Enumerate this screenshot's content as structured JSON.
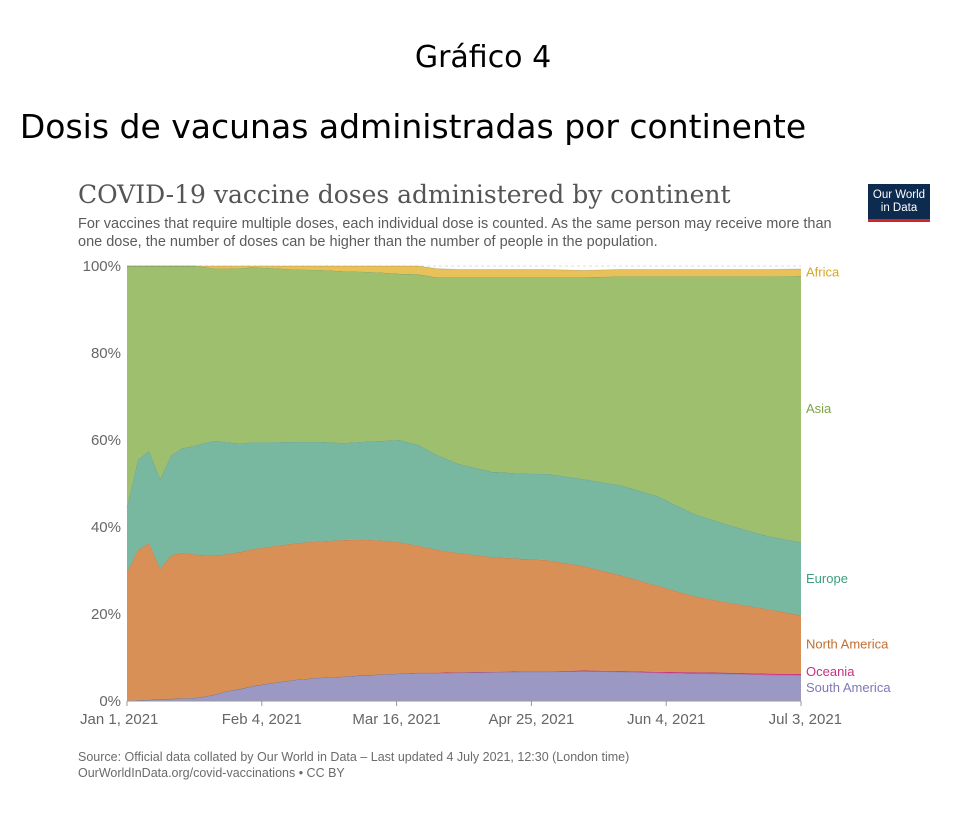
{
  "document": {
    "figure_label": "Gráfico 4",
    "title": "Dosis de vacunas administradas por continente"
  },
  "logo": {
    "line1": "Our World",
    "line2": "in Data"
  },
  "source": {
    "line1": "Source: Official data collated by Our World in Data – Last updated 4 July 2021, 12:30 (London time)",
    "line2": "OurWorldInData.org/covid-vaccinations • CC BY"
  },
  "chart_data": {
    "type": "area",
    "stacked": true,
    "normalized": true,
    "title": "COVID-19 vaccine doses administered by continent",
    "subtitle": "For vaccines that require multiple doses, each individual dose is counted. As the same person may receive more than one dose, the number of doses can be higher than the number of people in the population.",
    "xlabel": "",
    "ylabel": "",
    "xlim": [
      "2021-01-01",
      "2021-07-03"
    ],
    "ylim": [
      0,
      100
    ],
    "x_ticks": [
      "Jan 1, 2021",
      "Feb 4, 2021",
      "Mar 16, 2021",
      "Apr 25, 2021",
      "Jun 4, 2021",
      "Jul 3, 2021"
    ],
    "y_ticks": [
      "0%",
      "20%",
      "40%",
      "60%",
      "80%",
      "100%"
    ],
    "grid": "horizontal dashed",
    "legend": "right, labels at series end",
    "x": [
      "2021-01-01",
      "2021-01-04",
      "2021-01-07",
      "2021-01-10",
      "2021-01-13",
      "2021-01-16",
      "2021-01-19",
      "2021-01-22",
      "2021-01-25",
      "2021-01-28",
      "2021-02-01",
      "2021-02-04",
      "2021-02-10",
      "2021-02-16",
      "2021-02-22",
      "2021-03-01",
      "2021-03-06",
      "2021-03-11",
      "2021-03-16",
      "2021-03-21",
      "2021-03-26",
      "2021-04-01",
      "2021-04-10",
      "2021-04-18",
      "2021-04-25",
      "2021-05-05",
      "2021-05-15",
      "2021-05-25",
      "2021-06-04",
      "2021-06-14",
      "2021-06-24",
      "2021-07-03"
    ],
    "series": [
      {
        "name": "South America",
        "color": "#9b98c4",
        "values": [
          0.1,
          0.2,
          0.3,
          0.4,
          0.5,
          0.6,
          0.7,
          1.0,
          1.5,
          2.2,
          2.8,
          3.4,
          4.2,
          4.9,
          5.3,
          5.6,
          5.9,
          6.1,
          6.3,
          6.4,
          6.4,
          6.5,
          6.6,
          6.7,
          6.7,
          6.8,
          6.7,
          6.5,
          6.3,
          6.2,
          6.0,
          5.9
        ]
      },
      {
        "name": "Oceania",
        "color": "#d43f8d",
        "values": [
          0,
          0,
          0,
          0,
          0,
          0,
          0,
          0,
          0,
          0,
          0,
          0,
          0,
          0,
          0,
          0,
          0,
          0,
          0,
          0.1,
          0.1,
          0.1,
          0.1,
          0.1,
          0.1,
          0.2,
          0.2,
          0.2,
          0.3,
          0.3,
          0.3,
          0.3
        ]
      },
      {
        "name": "North America",
        "color": "#d99057",
        "values": [
          29.5,
          34.5,
          36,
          30,
          33,
          33.5,
          33,
          32.5,
          32,
          31.5,
          31.5,
          31.5,
          31.4,
          31.4,
          31.4,
          31.4,
          31.2,
          30.8,
          30.2,
          29.2,
          28.3,
          27.4,
          26.4,
          25.9,
          25.6,
          24,
          22,
          19.8,
          17.5,
          16,
          14.8,
          13.5
        ]
      },
      {
        "name": "Europe",
        "color": "#79b8a0",
        "values": [
          14.9,
          20.8,
          21.2,
          20.6,
          23,
          24,
          24.9,
          25.8,
          26.3,
          25.8,
          24.9,
          24.6,
          23.9,
          23.3,
          22.9,
          22.3,
          22.5,
          22.9,
          23.5,
          23.2,
          21.8,
          20.5,
          19.6,
          19.6,
          19.8,
          20,
          20.7,
          20.6,
          18.9,
          17.8,
          16.8,
          16.8
        ]
      },
      {
        "name": "Asia",
        "color": "#9ebf6e",
        "values": [
          55.5,
          44.5,
          42.5,
          49,
          43.5,
          41.9,
          41.4,
          40.5,
          39.6,
          39.9,
          40.3,
          40.2,
          40,
          39.6,
          39.5,
          39.5,
          39.1,
          38.7,
          38.2,
          39.2,
          40.8,
          42.9,
          44.7,
          45.1,
          45.2,
          46.4,
          48,
          50.5,
          54.6,
          57.3,
          59.7,
          61.2
        ]
      },
      {
        "name": "Africa",
        "color": "#e8c258",
        "values": [
          0,
          0,
          0,
          0,
          0,
          0,
          0,
          0.2,
          0.6,
          0.6,
          0.5,
          0.3,
          0.5,
          0.8,
          0.9,
          1.2,
          1.3,
          1.5,
          1.8,
          1.9,
          2.0,
          1.8,
          1.8,
          1.8,
          1.8,
          1.6,
          1.6,
          1.6,
          1.6,
          1.6,
          1.6,
          1.6
        ]
      }
    ]
  }
}
